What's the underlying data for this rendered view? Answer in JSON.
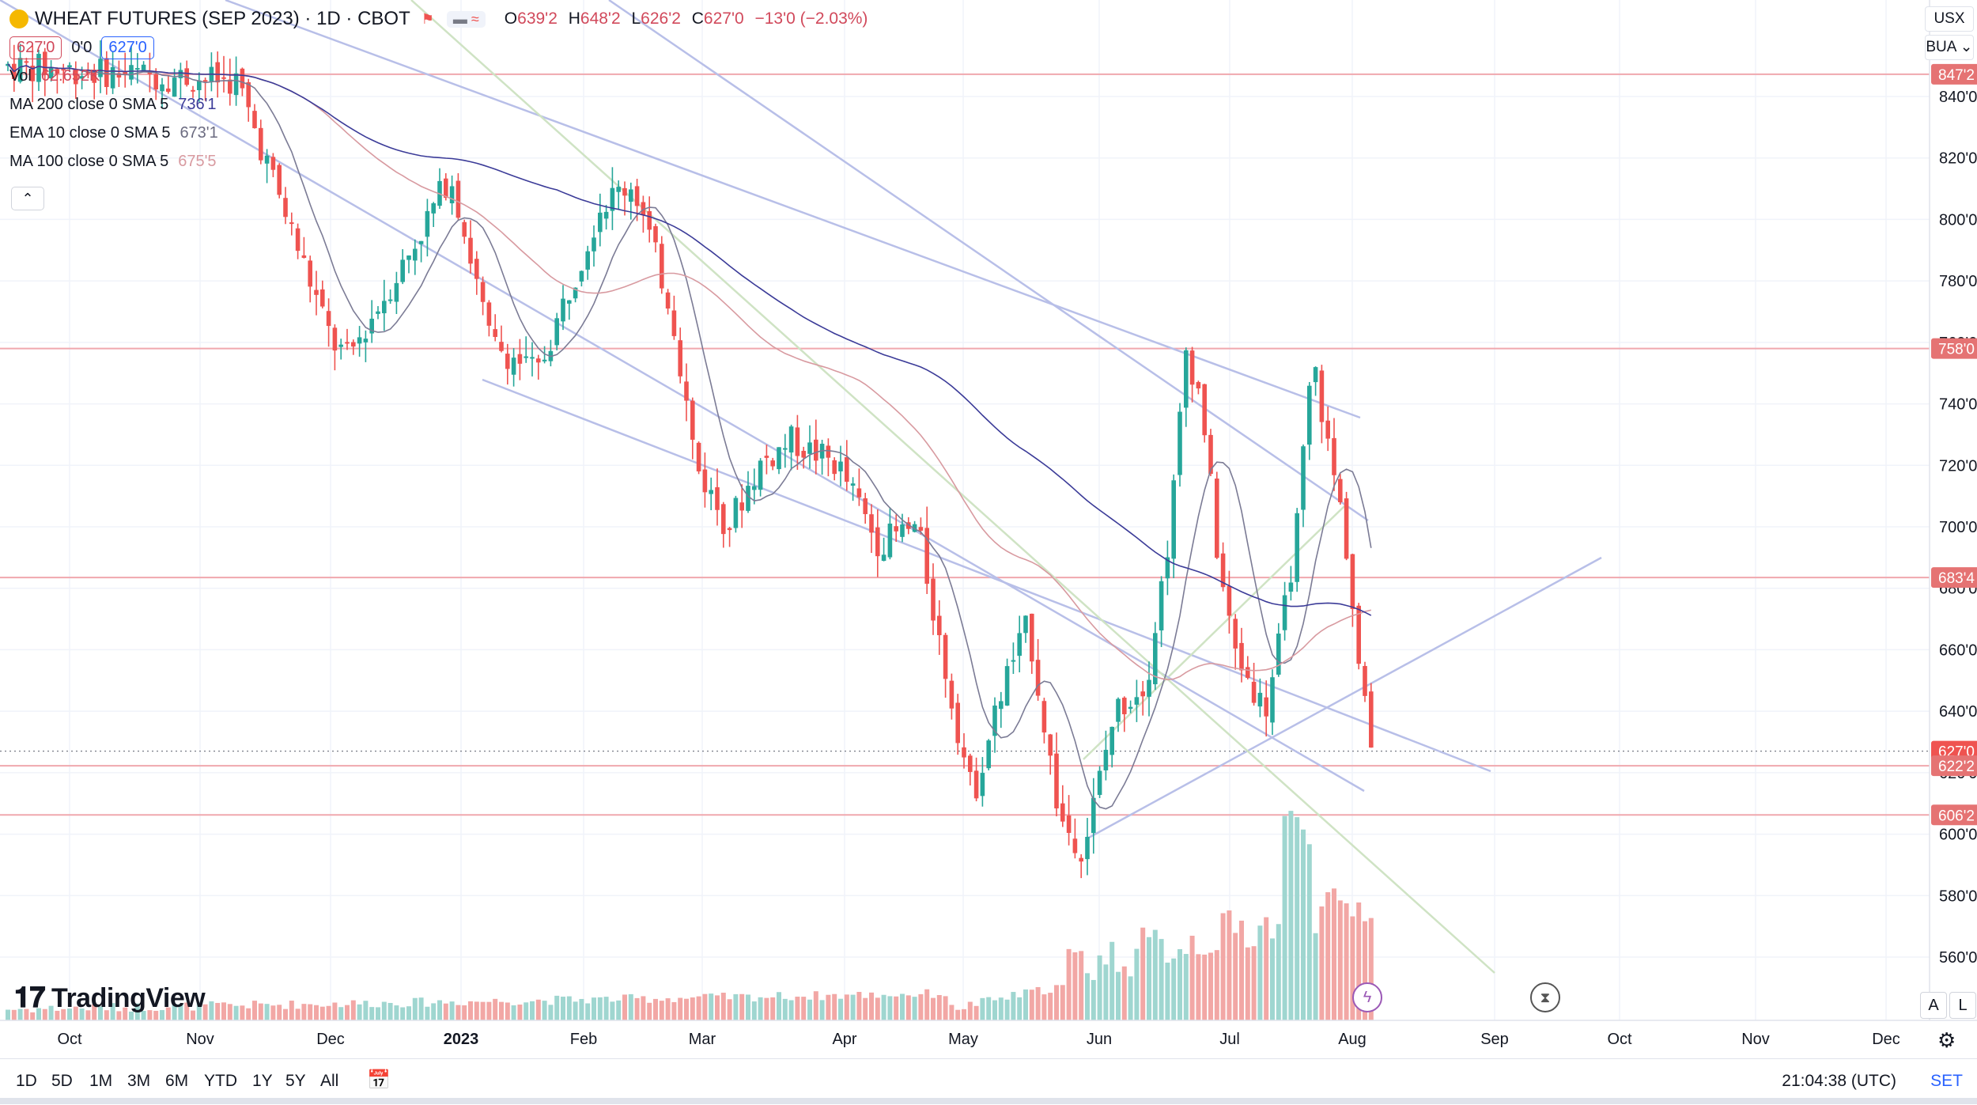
{
  "header": {
    "title": "WHEAT FUTURES (SEP 2023) · 1D · CBOT",
    "ohlc": {
      "o_label": "O",
      "o": "639'2",
      "h_label": "H",
      "h": "648'2",
      "l_label": "L",
      "l": "626'2",
      "c_label": "C",
      "c": "627'0",
      "chg": "−13'0 (−2.03%)"
    },
    "sell_price": "627'0",
    "spread": "0'0",
    "buy_price": "627'0",
    "compare_glyph": "≈"
  },
  "indicators": [
    {
      "label": "Vol",
      "value": "62.652K",
      "color": "#d1495b"
    },
    {
      "label": "MA 200 close 0 SMA 5",
      "value": "736'1",
      "color": "#3b3b98"
    },
    {
      "label": "EMA 10 close 0 SMA 5",
      "value": "673'1",
      "color": "#6b6b80"
    },
    {
      "label": "MA 100 close 0 SMA 5",
      "value": "675'5",
      "color": "#d89aa0"
    }
  ],
  "top_right": {
    "currency": "USX",
    "unit": "BUA"
  },
  "toolbar": {
    "ranges": [
      "1D",
      "5D",
      "1M",
      "3M",
      "6M",
      "YTD",
      "1Y",
      "5Y",
      "All"
    ],
    "clock": "21:04:38 (UTC)",
    "session": "SET"
  },
  "logo_text": "TradingView",
  "corner_buttons": [
    "A",
    "L"
  ],
  "colors": {
    "up": "#26a69a",
    "down": "#ef5350",
    "hline": "#f0a8ae",
    "trend": "#b8bfe8",
    "trend_green": "#cfe3c4"
  },
  "chart_data": {
    "type": "candlestick",
    "title": "WHEAT FUTURES (SEP 2023) · 1D · CBOT",
    "y_range": [
      550,
      855
    ],
    "y_ticks": [
      "560'0",
      "580'0",
      "600'0",
      "620'0",
      "640'0",
      "660'0",
      "680'0",
      "700'0",
      "720'0",
      "740'0",
      "760'0",
      "780'0",
      "800'0",
      "820'0",
      "840'0"
    ],
    "x_ticks": [
      "Oct",
      "Nov",
      "Dec",
      "2023",
      "Feb",
      "Mar",
      "Apr",
      "May",
      "Jun",
      "Jul",
      "Aug",
      "Sep",
      "Oct",
      "Nov",
      "Dec"
    ],
    "price_levels": [
      {
        "value": 847.25,
        "label": "847'2"
      },
      {
        "value": 758.0,
        "label": "758'0"
      },
      {
        "value": 683.5,
        "label": "683'4"
      },
      {
        "value": 627.0,
        "label": "627'0",
        "kind": "last"
      },
      {
        "value": 622.25,
        "label": "622'2"
      },
      {
        "value": 606.25,
        "label": "606'2"
      }
    ],
    "key_points": [
      {
        "date": "Nov",
        "close": 845
      },
      {
        "date": "Dec",
        "close": 755
      },
      {
        "date": "Jan",
        "close": 810
      },
      {
        "date": "Feb",
        "close": 815
      },
      {
        "date": "Mar",
        "close": 700
      },
      {
        "date": "Apr",
        "close": 720
      },
      {
        "date": "May",
        "close": 615
      },
      {
        "date": "late May",
        "low": 590
      },
      {
        "date": "Jun",
        "high": 770
      },
      {
        "date": "Jul",
        "low": 620
      },
      {
        "date": "late Jul",
        "high": 778
      },
      {
        "date": "Aug",
        "close": 627
      }
    ],
    "volume_last": "62.652K"
  }
}
